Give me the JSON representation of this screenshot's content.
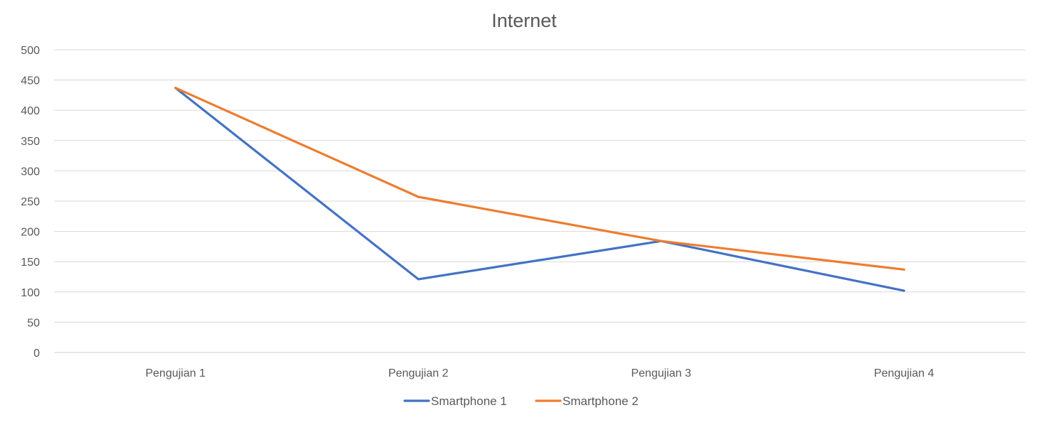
{
  "chart_data": {
    "type": "line",
    "title": "Internet",
    "xlabel": "",
    "ylabel": "",
    "categories": [
      "Pengujian 1",
      "Pengujian 2",
      "Pengujian 3",
      "Pengujian 4"
    ],
    "ylim": [
      0,
      500
    ],
    "yticks": [
      0,
      50,
      100,
      150,
      200,
      250,
      300,
      350,
      400,
      450,
      500
    ],
    "grid": true,
    "legend_position": "bottom",
    "series": [
      {
        "name": "Smartphone 1",
        "color": "#4472C4",
        "values": [
          437,
          121,
          184,
          102
        ]
      },
      {
        "name": "Smartphone 2",
        "color": "#ED7D31",
        "values": [
          437,
          257,
          184,
          137
        ]
      }
    ]
  }
}
